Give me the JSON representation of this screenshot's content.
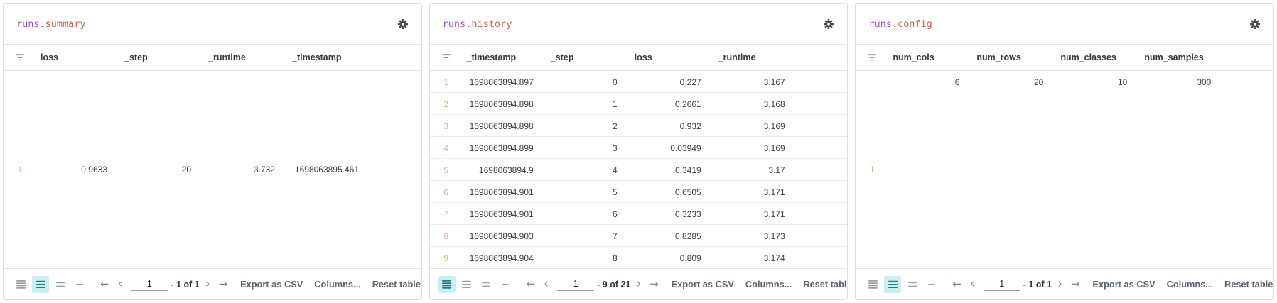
{
  "panels": [
    {
      "id": "runs-summary",
      "title_prefix": "runs",
      "title_dot": ".",
      "title_suffix": "summary",
      "columns": [
        "loss",
        "_step",
        "_runtime",
        "_timestamp"
      ],
      "rows": [
        {
          "index": "1",
          "values": [
            "0.9633",
            "20",
            "3.732",
            "1698063895.461"
          ]
        }
      ],
      "body_mode": "center",
      "row_height_selected": 1,
      "footer": {
        "page": "1",
        "range_label": "- 1 of 1"
      }
    },
    {
      "id": "runs-history",
      "title_prefix": "runs",
      "title_dot": ".",
      "title_suffix": "history",
      "columns": [
        "_timestamp",
        "_step",
        "loss",
        "_runtime"
      ],
      "rows": [
        {
          "index": "1",
          "values": [
            "1698063894.897",
            "0",
            "0.227",
            "3.167"
          ]
        },
        {
          "index": "2",
          "values": [
            "1698063894.898",
            "1",
            "0.2661",
            "3.168"
          ]
        },
        {
          "index": "3",
          "values": [
            "1698063894.898",
            "2",
            "0.932",
            "3.169"
          ]
        },
        {
          "index": "4",
          "values": [
            "1698063894.899",
            "3",
            "0.03949",
            "3.169"
          ]
        },
        {
          "index": "5",
          "values": [
            "1698063894.9",
            "4",
            "0.3419",
            "3.17"
          ]
        },
        {
          "index": "6",
          "values": [
            "1698063894.901",
            "5",
            "0.6505",
            "3.171"
          ]
        },
        {
          "index": "7",
          "values": [
            "1698063894.901",
            "6",
            "0.3233",
            "3.171"
          ]
        },
        {
          "index": "8",
          "values": [
            "1698063894.903",
            "7",
            "0.8285",
            "3.173"
          ]
        },
        {
          "index": "9",
          "values": [
            "1698063894.904",
            "8",
            "0.809",
            "3.174"
          ]
        }
      ],
      "body_mode": "list",
      "row_height_selected": 0,
      "footer": {
        "page": "1",
        "range_label": "- 9 of 21"
      }
    },
    {
      "id": "runs-config",
      "title_prefix": "runs",
      "title_dot": ".",
      "title_suffix": "config",
      "columns": [
        "num_cols",
        "num_rows",
        "num_classes",
        "num_samples"
      ],
      "rows": [
        {
          "index": "1",
          "values": [
            "6",
            "20",
            "10",
            "300"
          ]
        }
      ],
      "body_mode": "split",
      "row_height_selected": 1,
      "footer": {
        "page": "1",
        "range_label": "- 1 of 1"
      }
    }
  ],
  "footer_labels": {
    "first_page_icon": "←",
    "previous_page_icon": "‹",
    "next_page_icon": "›",
    "last_page_icon": "→",
    "export_csv": "Export as CSV",
    "columns": "Columns...",
    "reset_table": "Reset table"
  },
  "icons": {
    "settings": "gear",
    "header_filter": "filter-lines-funnel",
    "row_height_options": [
      "4-lines",
      "3-lines",
      "2-lines",
      "1-line"
    ]
  },
  "colors": {
    "title_runs": "#ab4cc4",
    "title_name": "#d2604a",
    "row_index": "#efab82",
    "row_height_selected_bg": "#cdeef1",
    "row_height_selected_icon": "#1f7d8a",
    "footer_icon": "#97a2aa",
    "footer_text": "#5b6670",
    "header_text": "#383838",
    "panel_border": "#dedede"
  }
}
